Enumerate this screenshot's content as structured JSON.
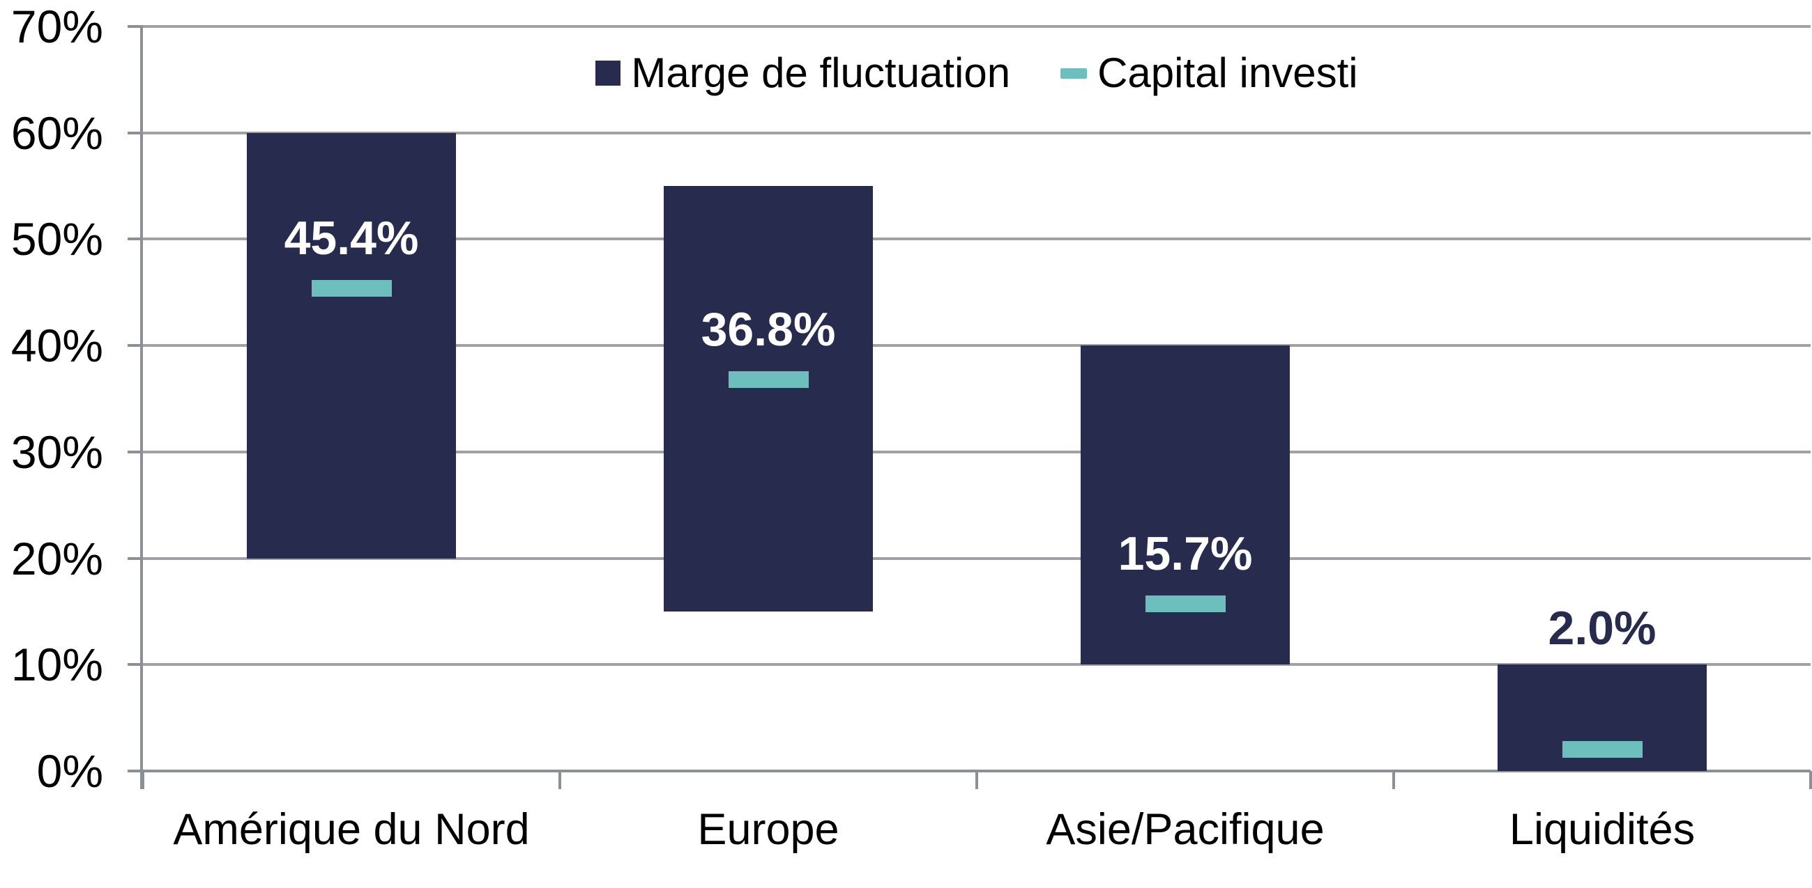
{
  "chart_data": {
    "type": "bar",
    "subtype": "floating-range-bars-with-dash-markers",
    "categories": [
      "Amérique du Nord",
      "Europe",
      "Asie/Pacifique",
      "Liquidités"
    ],
    "series": [
      {
        "name": "Marge de fluctuation",
        "type": "range_bar",
        "color": "#272B4D",
        "ranges_pct": [
          [
            20,
            60
          ],
          [
            15,
            55
          ],
          [
            10,
            40
          ],
          [
            0,
            10
          ]
        ]
      },
      {
        "name": "Capital investi",
        "type": "dash_marker",
        "color": "#6CBFBD",
        "values_pct": [
          45.4,
          36.8,
          15.7,
          2.0
        ]
      }
    ],
    "data_labels": [
      {
        "text": "45.4%",
        "color": "#FFFFFF",
        "placement": "above_marker"
      },
      {
        "text": "36.8%",
        "color": "#FFFFFF",
        "placement": "above_marker"
      },
      {
        "text": "15.7%",
        "color": "#FFFFFF",
        "placement": "above_marker"
      },
      {
        "text": "2.0%",
        "color": "#272B4D",
        "placement": "above_bar"
      }
    ],
    "ylim": [
      0,
      70
    ],
    "ytick_step": 10,
    "ytick_labels": [
      "0%",
      "10%",
      "20%",
      "30%",
      "40%",
      "50%",
      "60%",
      "70%"
    ],
    "grid": true,
    "legend_position": "top-center"
  },
  "legend": {
    "items": [
      {
        "label": "Marge de fluctuation",
        "swatch": "square",
        "color": "#272B4D"
      },
      {
        "label": "Capital investi",
        "swatch": "dash",
        "color": "#6CBFBD"
      }
    ]
  },
  "colors": {
    "background": "#FFFFFF",
    "bar_navy": "#272B4D",
    "marker_teal": "#6CBFBD",
    "gridline": "#A0A1A8",
    "axis": "#8D8F96",
    "text": "#000000"
  }
}
